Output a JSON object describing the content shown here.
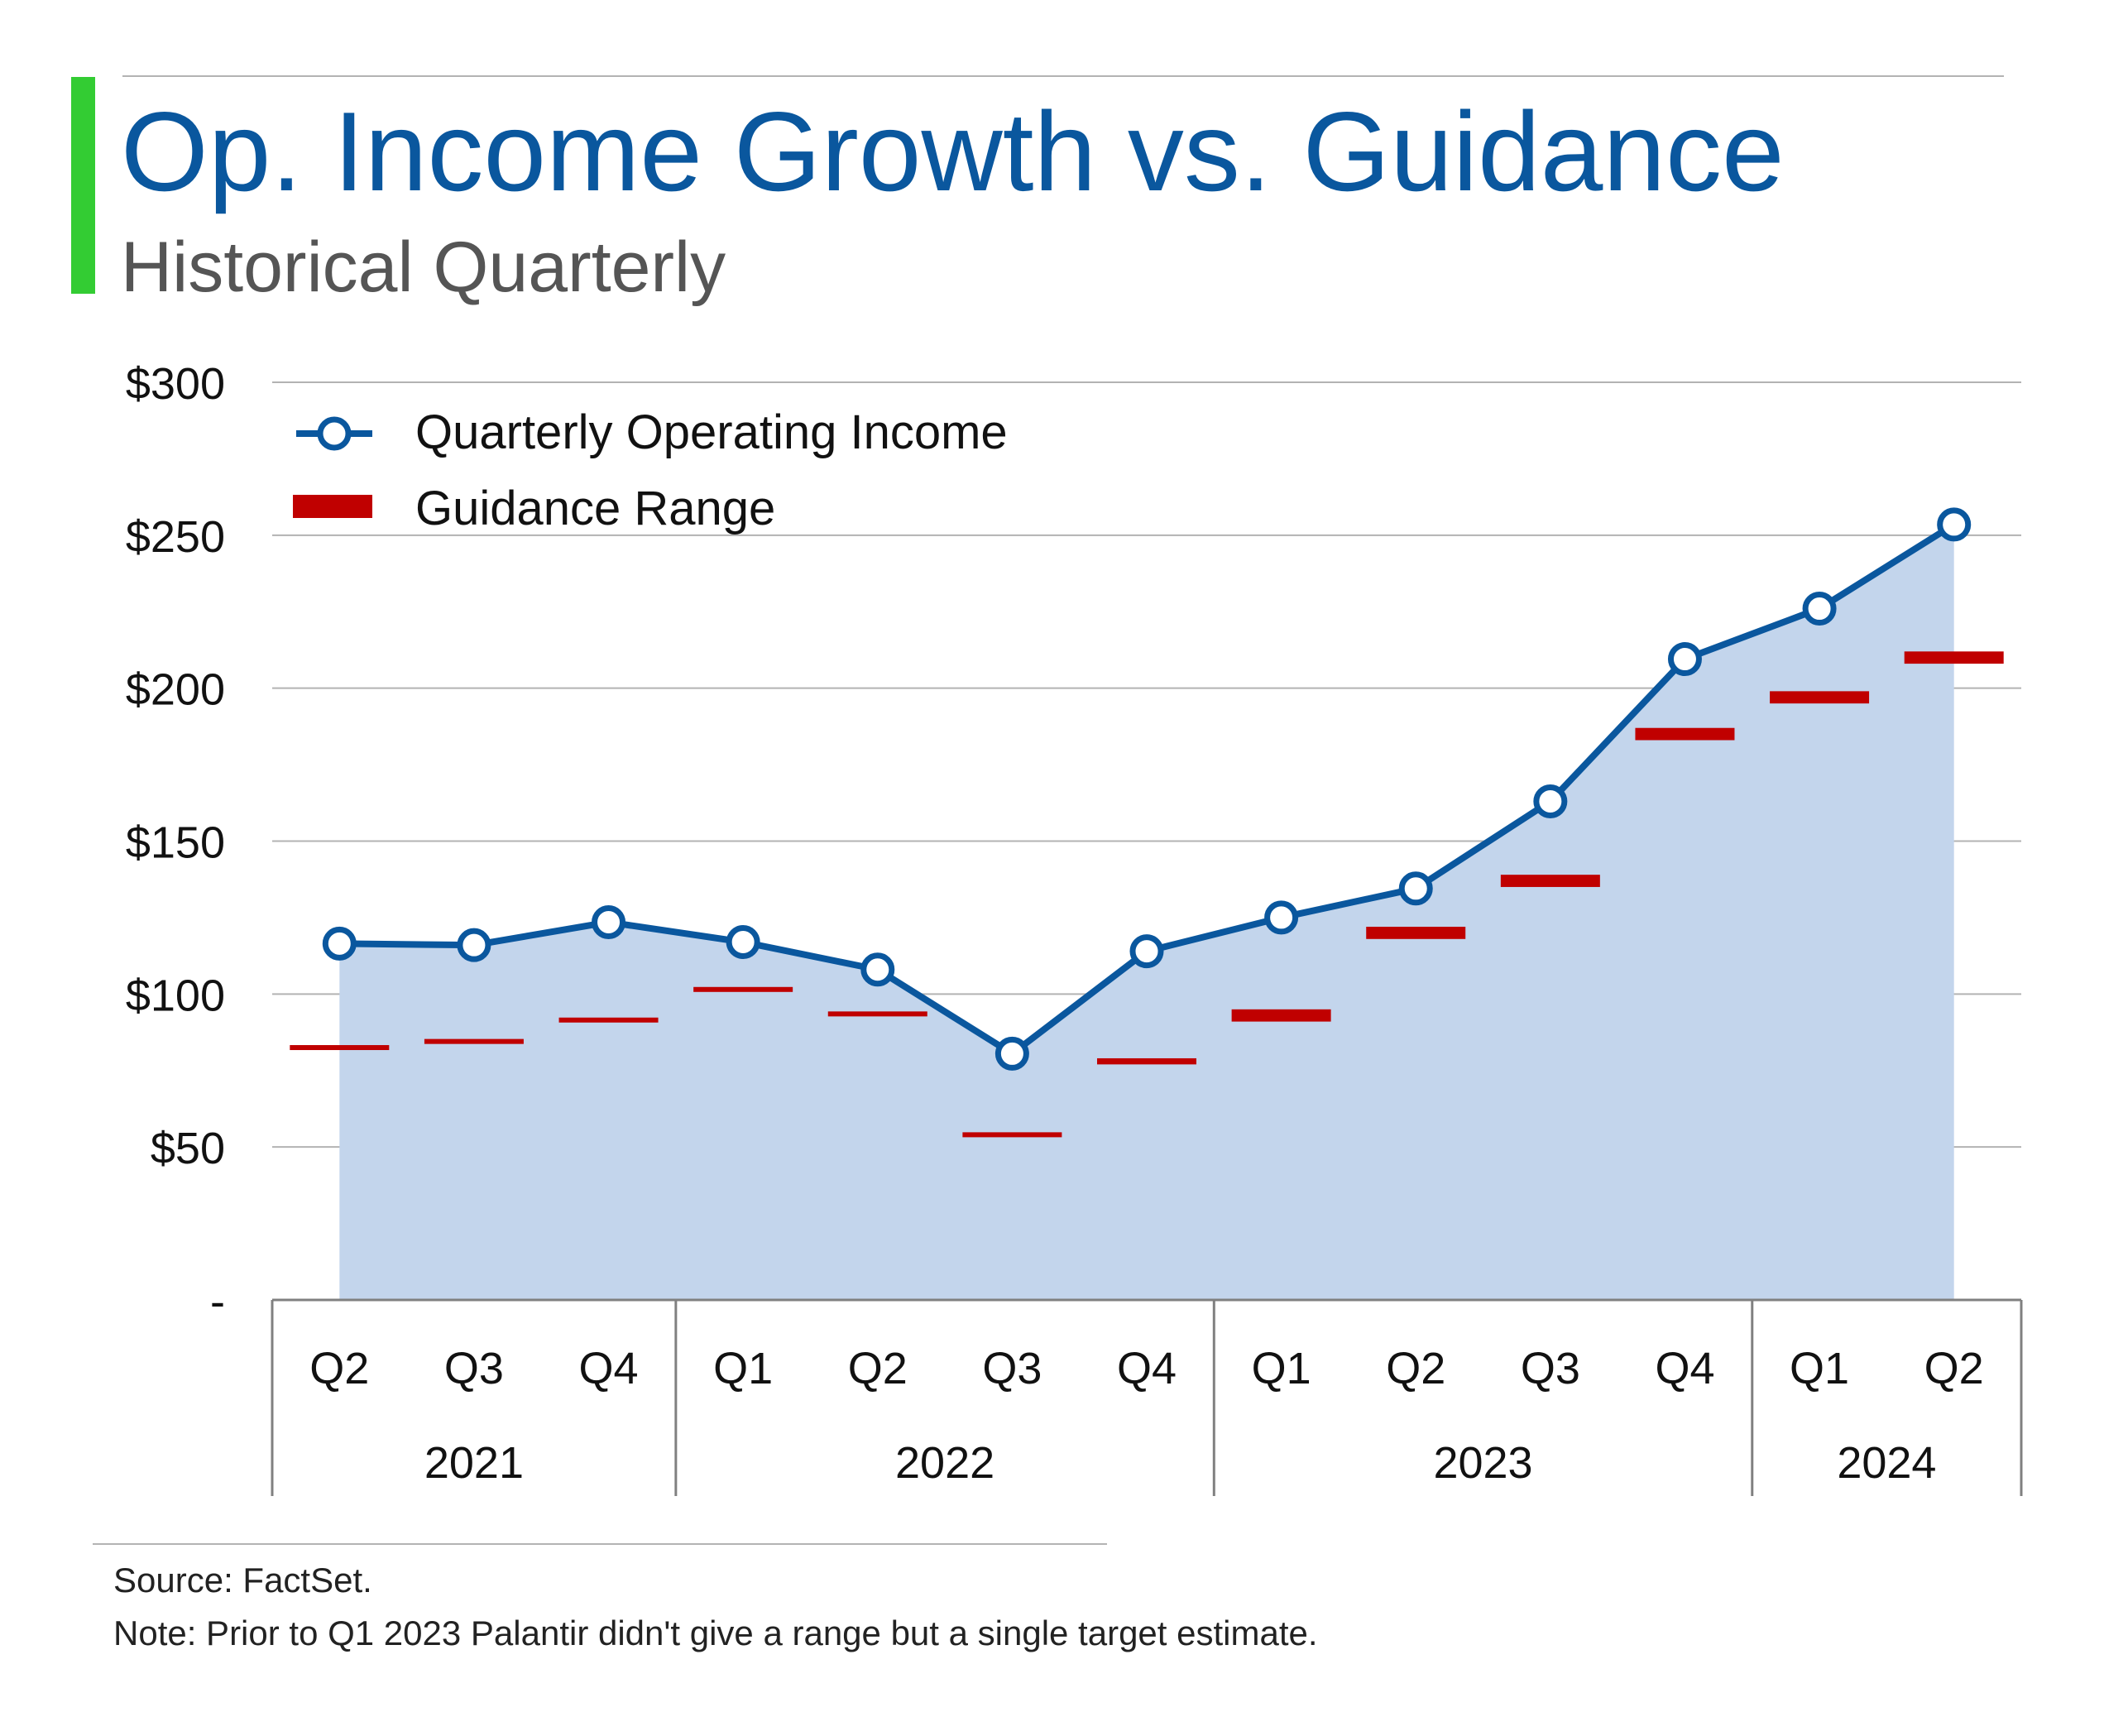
{
  "header": {
    "title": "Op. Income Growth vs. Guidance",
    "subtitle": "Historical Quarterly"
  },
  "colors": {
    "accent_bar": "#33cc33",
    "title": "#0a579e",
    "subtitle": "#555555",
    "line": "#0a579e",
    "area": "#c3d5ec",
    "guidance": "#c00000",
    "gridline": "#b3b3b3",
    "text": "#111111"
  },
  "legend": {
    "placement": "top-left",
    "items": [
      {
        "key": "income",
        "label": "Quarterly Operating Income",
        "icon": "line-circle-marker-icon"
      },
      {
        "key": "guidance",
        "label": "Guidance Range",
        "icon": "red-dash-icon"
      }
    ]
  },
  "footer": {
    "source": "Source: FactSet.",
    "note": "Note: Prior to Q1 2023 Palantir didn't give a range but a single target estimate."
  },
  "chart_data": {
    "type": "line",
    "title": "Op. Income Growth vs. Guidance",
    "subtitle": "Historical Quarterly",
    "xlabel": "",
    "ylabel": "",
    "ylim": [
      0,
      300
    ],
    "yticks": [
      {
        "value": 0,
        "label": "-"
      },
      {
        "value": 50,
        "label": "$50"
      },
      {
        "value": 100,
        "label": "$100"
      },
      {
        "value": 150,
        "label": "$150"
      },
      {
        "value": 200,
        "label": "$200"
      },
      {
        "value": 250,
        "label": "$250"
      },
      {
        "value": 300,
        "label": "$300"
      }
    ],
    "grid": true,
    "categories": [
      "Q2",
      "Q3",
      "Q4",
      "Q1",
      "Q2",
      "Q3",
      "Q4",
      "Q1",
      "Q2",
      "Q3",
      "Q4",
      "Q1",
      "Q2"
    ],
    "year_groups": [
      {
        "label": "2021",
        "count": 3
      },
      {
        "label": "2022",
        "count": 4
      },
      {
        "label": "2023",
        "count": 4
      },
      {
        "label": "2024",
        "count": 2
      }
    ],
    "series": [
      {
        "name": "Quarterly Operating Income",
        "style": "line-area-markers",
        "values": [
          116.5,
          116,
          123.5,
          117,
          108,
          80.5,
          114,
          125,
          134.5,
          163,
          209.5,
          226,
          253.5
        ]
      },
      {
        "name": "Guidance Range",
        "style": "range-dash",
        "ranges": [
          [
            82,
            83
          ],
          [
            84,
            85
          ],
          [
            91,
            92
          ],
          [
            101,
            102
          ],
          [
            93,
            94
          ],
          [
            53.5,
            54.5
          ],
          [
            77,
            79
          ],
          [
            91,
            95
          ],
          [
            118,
            122
          ],
          [
            135,
            139
          ],
          [
            183,
            187
          ],
          [
            195,
            199
          ],
          [
            208,
            212
          ]
        ]
      }
    ]
  }
}
